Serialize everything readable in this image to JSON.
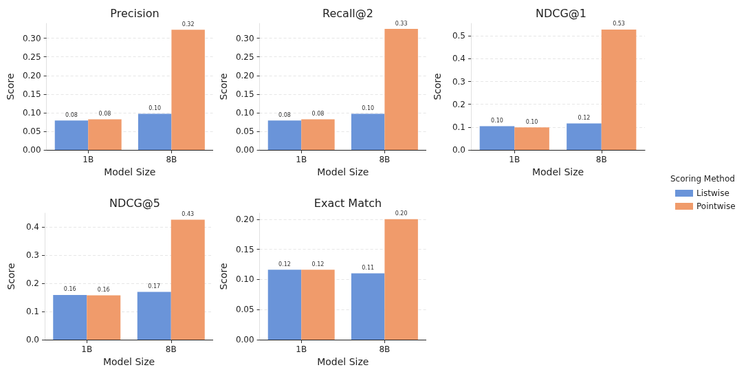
{
  "chart_data": [
    {
      "type": "bar",
      "title": "Precision",
      "xlabel": "Model Size",
      "ylabel": "Score",
      "categories": [
        "1B",
        "8B"
      ],
      "ylim": [
        0,
        0.34
      ],
      "yticks": [
        {
          "value": 0,
          "label": "0.00"
        },
        0.05,
        {
          "value": 0.1,
          "label": "0.10"
        },
        0.15,
        {
          "value": 0.2,
          "label": "0.20"
        },
        0.25,
        {
          "value": 0.3,
          "label": "0.30"
        }
      ],
      "grid": "y",
      "legend": false,
      "series": [
        {
          "color": "#6a94d9",
          "values": [
            0.079,
            0.097
          ],
          "value_labels": [
            "0.08",
            "0.10"
          ]
        },
        {
          "color": "#f09b6b",
          "values": [
            0.082,
            0.323
          ],
          "value_labels": [
            "0.08",
            "0.32"
          ]
        }
      ]
    },
    {
      "type": "bar",
      "title": "Recall@2",
      "xlabel": "Model Size",
      "ylabel": "Score",
      "categories": [
        "1B",
        "8B"
      ],
      "ylim": [
        0,
        0.34
      ],
      "yticks": [
        {
          "value": 0,
          "label": "0.00"
        },
        0.05,
        {
          "value": 0.1,
          "label": "0.10"
        },
        0.15,
        {
          "value": 0.2,
          "label": "0.20"
        },
        0.25,
        {
          "value": 0.3,
          "label": "0.30"
        }
      ],
      "grid": "y",
      "legend": false,
      "series": [
        {
          "color": "#6a94d9",
          "values": [
            0.079,
            0.097
          ],
          "value_labels": [
            "0.08",
            "0.10"
          ]
        },
        {
          "color": "#f09b6b",
          "values": [
            0.082,
            0.325
          ],
          "value_labels": [
            "0.08",
            "0.33"
          ]
        }
      ]
    },
    {
      "type": "bar",
      "title": "NDCG@1",
      "xlabel": "Model Size",
      "ylabel": "Score",
      "categories": [
        "1B",
        "8B"
      ],
      "ylim": [
        0,
        0.555
      ],
      "yticks": [
        {
          "value": 0,
          "label": "0.0"
        },
        0.1,
        0.2,
        0.3,
        0.4,
        0.5
      ],
      "grid": "y",
      "legend": "right",
      "legend_title": "Scoring Method",
      "series": [
        {
          "name": "Listwise",
          "color": "#6a94d9",
          "values": [
            0.104,
            0.116
          ],
          "value_labels": [
            "0.10",
            "0.12"
          ]
        },
        {
          "name": "Pointwise",
          "color": "#f09b6b",
          "values": [
            0.099,
            0.528
          ],
          "value_labels": [
            "0.10",
            "0.53"
          ]
        }
      ]
    },
    {
      "type": "bar",
      "title": "NDCG@5",
      "xlabel": "Model Size",
      "ylabel": "Score",
      "categories": [
        "1B",
        "8B"
      ],
      "ylim": [
        0,
        0.45
      ],
      "yticks": [
        {
          "value": 0,
          "label": "0.0"
        },
        0.1,
        0.2,
        0.3,
        0.4
      ],
      "grid": "y",
      "legend": false,
      "series": [
        {
          "color": "#6a94d9",
          "values": [
            0.159,
            0.17
          ],
          "value_labels": [
            "0.16",
            "0.17"
          ]
        },
        {
          "color": "#f09b6b",
          "values": [
            0.158,
            0.427
          ],
          "value_labels": [
            "0.16",
            "0.43"
          ]
        }
      ]
    },
    {
      "type": "bar",
      "title": "Exact Match",
      "xlabel": "Model Size",
      "ylabel": "Score",
      "categories": [
        "1B",
        "8B"
      ],
      "ylim": [
        0,
        0.21
      ],
      "yticks": [
        {
          "value": 0,
          "label": "0.00"
        },
        0.05,
        {
          "value": 0.1,
          "label": "0.10"
        },
        0.15,
        {
          "value": 0.2,
          "label": "0.20"
        }
      ],
      "grid": "y",
      "legend": false,
      "series": [
        {
          "color": "#6a94d9",
          "values": [
            0.116,
            0.11
          ],
          "value_labels": [
            "0.12",
            "0.11"
          ]
        },
        {
          "color": "#f09b6b",
          "values": [
            0.116,
            0.2
          ],
          "value_labels": [
            "0.12",
            "0.20"
          ]
        }
      ]
    }
  ]
}
